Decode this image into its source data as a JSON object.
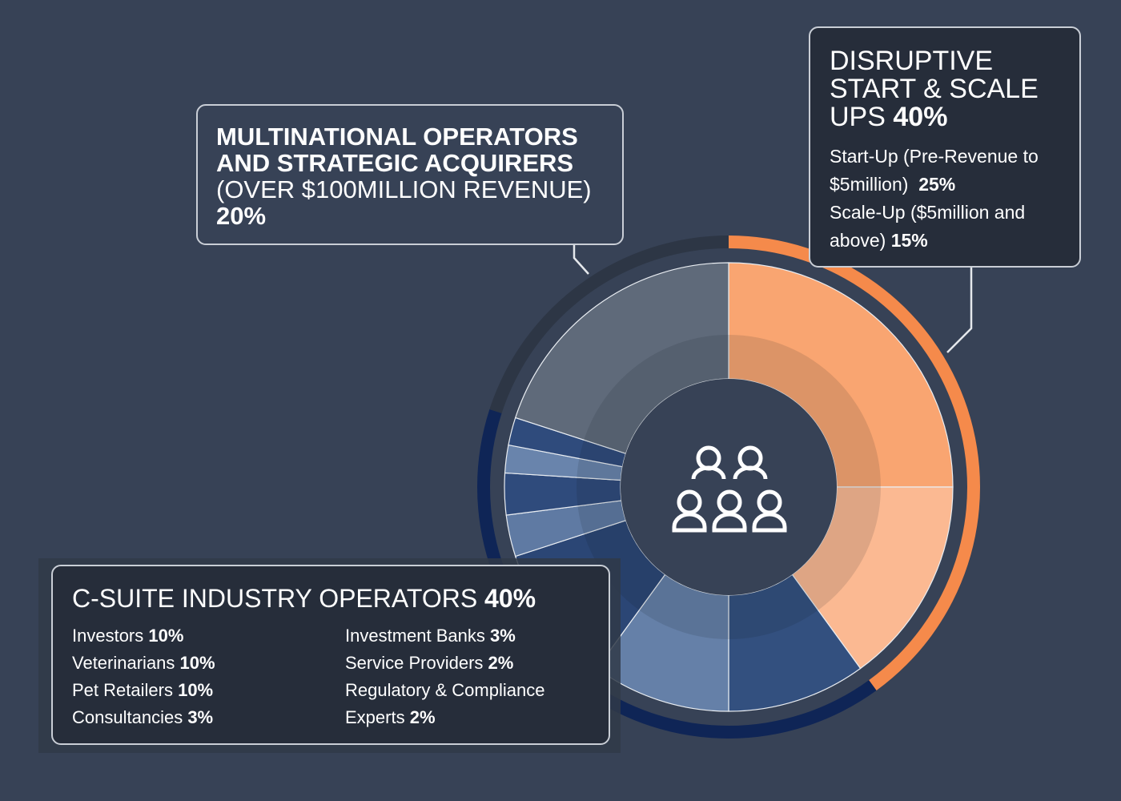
{
  "chart_data": {
    "type": "pie",
    "groups": [
      {
        "name": "DISRUPTIVE START & SCALE UPS",
        "value": 40,
        "value_label": "40%",
        "color": "#f58a4b",
        "items": [
          {
            "name": "Start-Up (Pre-Revenue to $5million)",
            "value": 25,
            "value_label": "25%",
            "color": "#f9a571"
          },
          {
            "name": "Scale-Up ($5million and above)",
            "value": 15,
            "value_label": "15%",
            "color": "#fbb992"
          }
        ]
      },
      {
        "name": "C-SUITE INDUSTRY OPERATORS",
        "value": 40,
        "value_label": "40%",
        "color": "#0f2556",
        "items": [
          {
            "name": "Investors",
            "value": 10,
            "value_label": "10%",
            "color": "#33507f"
          },
          {
            "name": "Veterinarians",
            "value": 10,
            "value_label": "10%",
            "color": "#6580a8"
          },
          {
            "name": "Pet Retailers",
            "value": 10,
            "value_label": "10%",
            "color": "#2b4675"
          },
          {
            "name": "Consultancies",
            "value": 3,
            "value_label": "3%",
            "color": "#5f7aa3"
          },
          {
            "name": "Investment Banks",
            "value": 3,
            "value_label": "3%",
            "color": "#2f4b7c"
          },
          {
            "name": "Service Providers",
            "value": 2,
            "value_label": "2%",
            "color": "#6984ac"
          },
          {
            "name": "Regulatory & Compliance Experts",
            "value": 2,
            "value_label": "2%",
            "color": "#2f4b7c"
          }
        ]
      },
      {
        "name": "MULTINATIONAL OPERATORS AND STRATEGIC ACQUIRERS",
        "note": "(OVER $100MILLION REVENUE)",
        "value": 20,
        "value_label": "20%",
        "color": "#2d3645",
        "items": [
          {
            "name": "MULTINATIONAL OPERATORS AND STRATEGIC ACQUIRERS",
            "value": 20,
            "value_label": "20%",
            "color": "#5f6a7a"
          }
        ]
      }
    ]
  }
}
